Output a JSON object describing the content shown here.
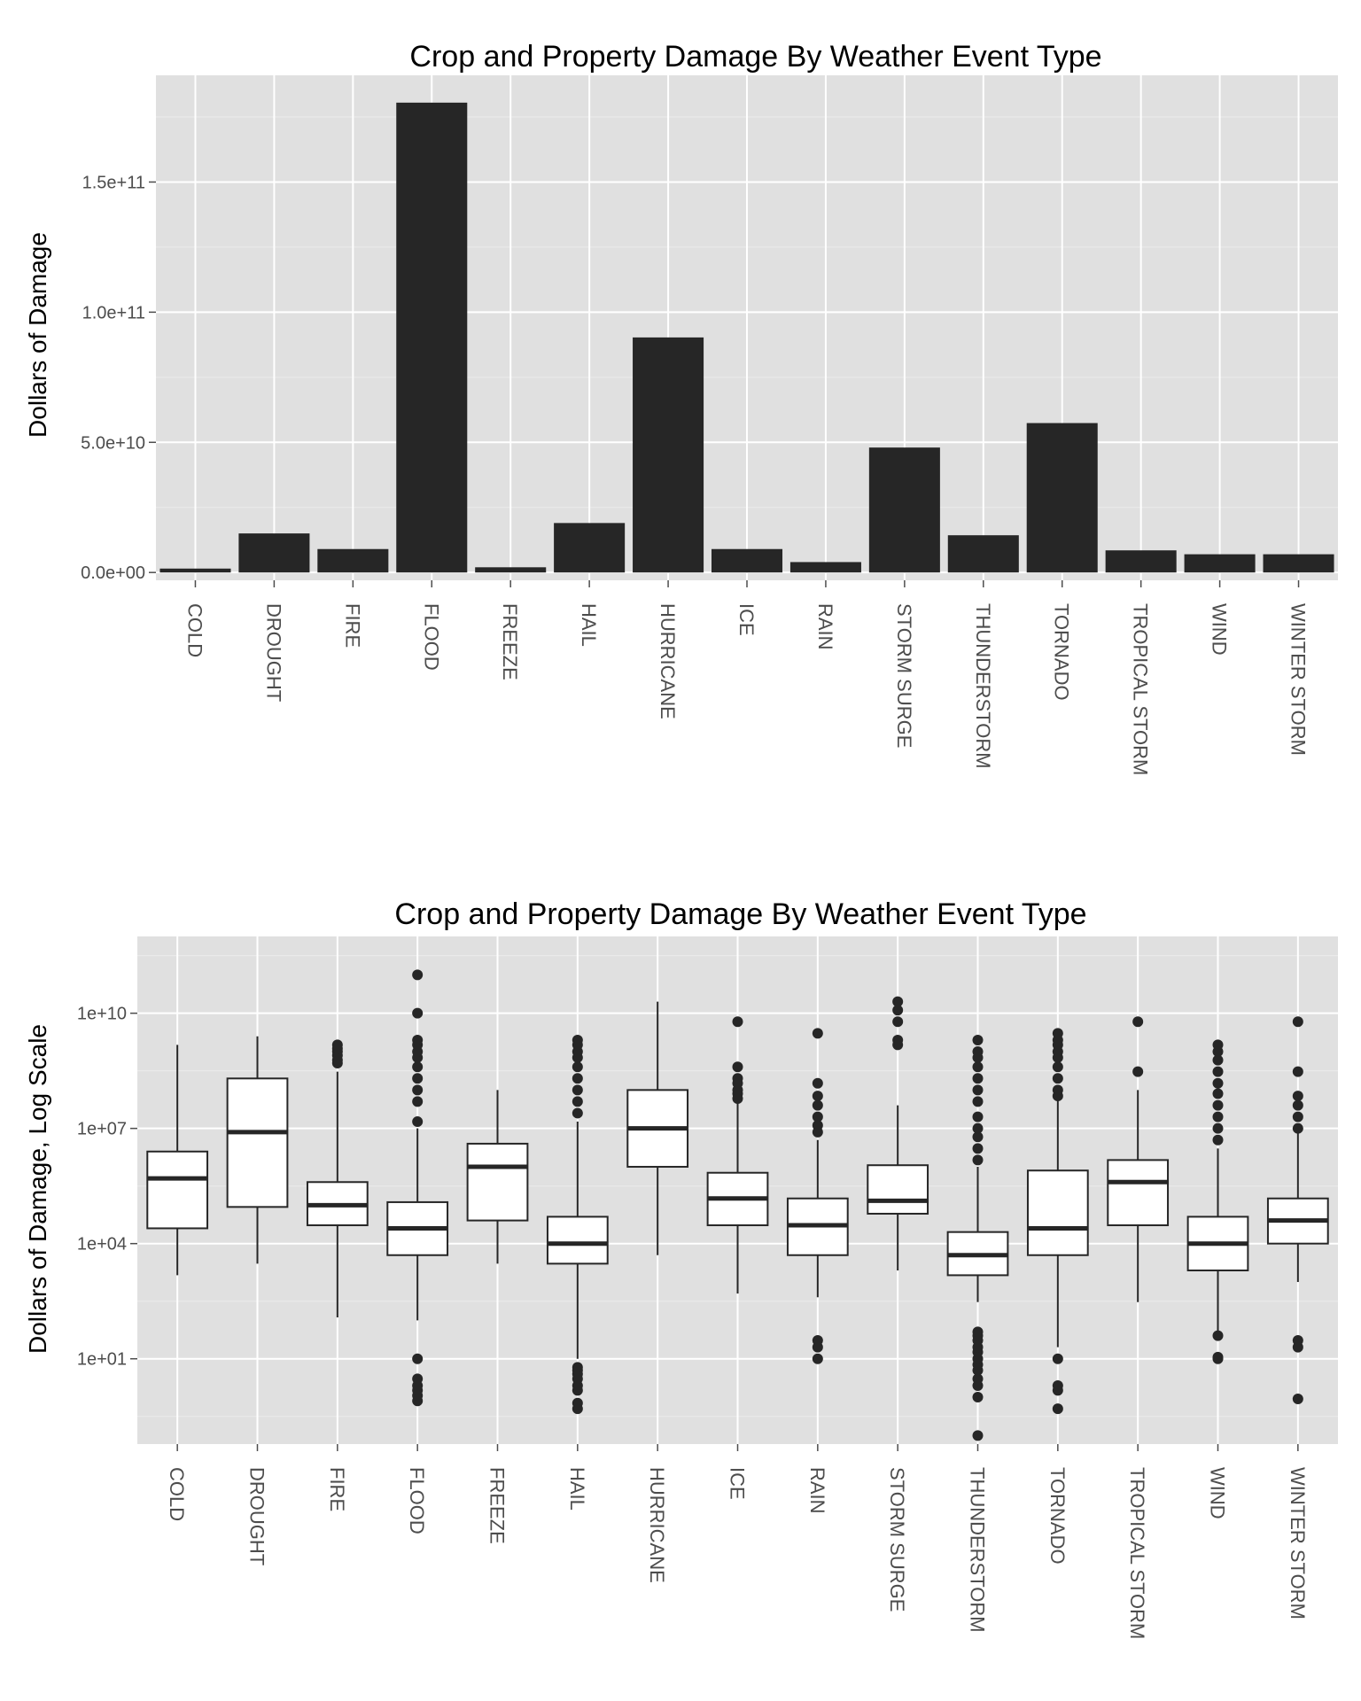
{
  "colors": {
    "panel": "#e0e0e0",
    "grid_major": "#ffffff",
    "grid_minor": "#ebebeb",
    "bar": "#262626",
    "box_fill": "#ffffff",
    "box_stroke": "#262626",
    "tick_text": "#4d4d4d",
    "tick_mark": "#4d4d4d"
  },
  "chart_data": [
    {
      "type": "bar",
      "title": "Crop and Property Damage By Weather Event Type",
      "xlabel": "",
      "ylabel": "Dollars of Damage",
      "ylim": [
        -3000000000,
        191000000000
      ],
      "grid": true,
      "yticks": [
        0,
        50000000000,
        100000000000,
        150000000000
      ],
      "ytick_labels": [
        "0.0e+00",
        "5.0e+10",
        "1.0e+11",
        "1.5e+11"
      ],
      "categories": [
        "COLD",
        "DROUGHT",
        "FIRE",
        "FLOOD",
        "FREEZE",
        "HAIL",
        "HURRICANE",
        "ICE",
        "RAIN",
        "STORM SURGE",
        "THUNDERSTORM",
        "TORNADO",
        "TROPICAL STORM",
        "WIND",
        "WINTER STORM"
      ],
      "values": [
        1500000000,
        15000000000,
        9000000000,
        180500000000,
        2000000000,
        19000000000,
        90300000000,
        9000000000,
        4000000000,
        48000000000,
        14300000000,
        57400000000,
        8500000000,
        7000000000,
        7000000000
      ]
    },
    {
      "type": "box",
      "title": "Crop and Property Damage By Weather Event Type",
      "xlabel": "",
      "ylabel": "Dollars of Damage, Log Scale",
      "y_scale": "log10",
      "ylim": [
        0.06,
        1000000000000
      ],
      "grid": true,
      "yticks": [
        10,
        10000,
        10000000,
        10000000000
      ],
      "ytick_labels": [
        "1e+01",
        "1e+04",
        "1e+07",
        "1e+10"
      ],
      "categories": [
        "COLD",
        "DROUGHT",
        "FIRE",
        "FLOOD",
        "FREEZE",
        "HAIL",
        "HURRICANE",
        "ICE",
        "RAIN",
        "STORM SURGE",
        "THUNDERSTORM",
        "TORNADO",
        "TROPICAL STORM",
        "WIND",
        "WINTER STORM"
      ],
      "boxes": [
        {
          "category": "COLD",
          "whisker_low": 1500,
          "q1": 25000,
          "median": 500000,
          "q3": 2500000,
          "whisker_high": 1500000000,
          "outliers": []
        },
        {
          "category": "DROUGHT",
          "whisker_low": 3000,
          "q1": 90000,
          "median": 8000000,
          "q3": 200000000,
          "whisker_high": 2500000000,
          "outliers": []
        },
        {
          "category": "FIRE",
          "whisker_low": 120,
          "q1": 30000,
          "median": 100000,
          "q3": 400000,
          "whisker_high": 300000000,
          "outliers": [
            500000000,
            600000000,
            800000000,
            1000000000,
            1200000000,
            1500000000
          ]
        },
        {
          "category": "FLOOD",
          "whisker_low": 100,
          "q1": 5000,
          "median": 25000,
          "q3": 120000,
          "whisker_high": 10000000,
          "outliers": [
            0.8,
            1.1,
            1.5,
            2,
            3,
            10,
            15000000,
            50000000,
            100000000,
            200000000,
            400000000,
            700000000,
            1000000000,
            1500000000,
            2000000000,
            10000000000,
            100000000000
          ]
        },
        {
          "category": "FREEZE",
          "whisker_low": 3000,
          "q1": 40000,
          "median": 1000000,
          "q3": 4000000,
          "whisker_high": 100000000,
          "outliers": []
        },
        {
          "category": "HAIL",
          "whisker_low": 10,
          "q1": 3000,
          "median": 10000,
          "q3": 50000,
          "whisker_high": 15000000,
          "outliers": [
            0.5,
            0.7,
            1.5,
            2,
            3,
            4,
            5,
            6,
            25000000,
            50000000,
            100000000,
            200000000,
            400000000,
            700000000,
            1000000000,
            1500000000,
            2000000000
          ]
        },
        {
          "category": "HURRICANE",
          "whisker_low": 5000,
          "q1": 1000000,
          "median": 10000000,
          "q3": 100000000,
          "whisker_high": 20000000000,
          "outliers": []
        },
        {
          "category": "ICE",
          "whisker_low": 500,
          "q1": 30000,
          "median": 150000,
          "q3": 700000,
          "whisker_high": 50000000,
          "outliers": [
            60000000,
            80000000,
            100000000,
            150000000,
            200000000,
            400000000,
            6000000000
          ]
        },
        {
          "category": "RAIN",
          "whisker_low": 400,
          "q1": 5000,
          "median": 30000,
          "q3": 150000,
          "whisker_high": 5000000,
          "outliers": [
            10,
            20,
            30,
            8000000,
            12000000,
            20000000,
            40000000,
            70000000,
            150000000,
            3000000000
          ]
        },
        {
          "category": "STORM SURGE",
          "whisker_low": 2000,
          "q1": 60000,
          "median": 130000,
          "q3": 1100000,
          "whisker_high": 40000000,
          "outliers": [
            1500000000,
            2000000000,
            6000000000,
            12000000000,
            20000000000
          ]
        },
        {
          "category": "THUNDERSTORM",
          "whisker_low": 300,
          "q1": 1500,
          "median": 5000,
          "q3": 20000,
          "whisker_high": 1000000,
          "outliers": [
            0.1,
            1,
            2,
            3,
            5,
            7,
            10,
            15,
            20,
            30,
            40,
            50,
            1500000,
            3000000,
            6000000,
            10000000,
            20000000,
            50000000,
            100000000,
            200000000,
            400000000,
            700000000,
            1000000000,
            2000000000
          ]
        },
        {
          "category": "TORNADO",
          "whisker_low": 20,
          "q1": 5000,
          "median": 25000,
          "q3": 800000,
          "whisker_high": 60000000,
          "outliers": [
            0.5,
            1.5,
            2,
            10,
            70000000,
            100000000,
            200000000,
            400000000,
            700000000,
            1000000000,
            1500000000,
            2000000000,
            3000000000
          ]
        },
        {
          "category": "TROPICAL STORM",
          "whisker_low": 300,
          "q1": 30000,
          "median": 400000,
          "q3": 1500000,
          "whisker_high": 100000000,
          "outliers": [
            300000000,
            6000000000
          ]
        },
        {
          "category": "WIND",
          "whisker_low": 40,
          "q1": 2000,
          "median": 10000,
          "q3": 50000,
          "whisker_high": 3000000,
          "outliers": [
            10,
            11,
            40,
            5000000,
            10000000,
            20000000,
            40000000,
            80000000,
            150000000,
            300000000,
            600000000,
            1000000000,
            1500000000
          ]
        },
        {
          "category": "WINTER STORM",
          "whisker_low": 1000,
          "q1": 10000,
          "median": 40000,
          "q3": 150000,
          "whisker_high": 8000000,
          "outliers": [
            0.9,
            20,
            30,
            10000000,
            20000000,
            40000000,
            70000000,
            300000000,
            6000000000
          ]
        }
      ]
    }
  ]
}
